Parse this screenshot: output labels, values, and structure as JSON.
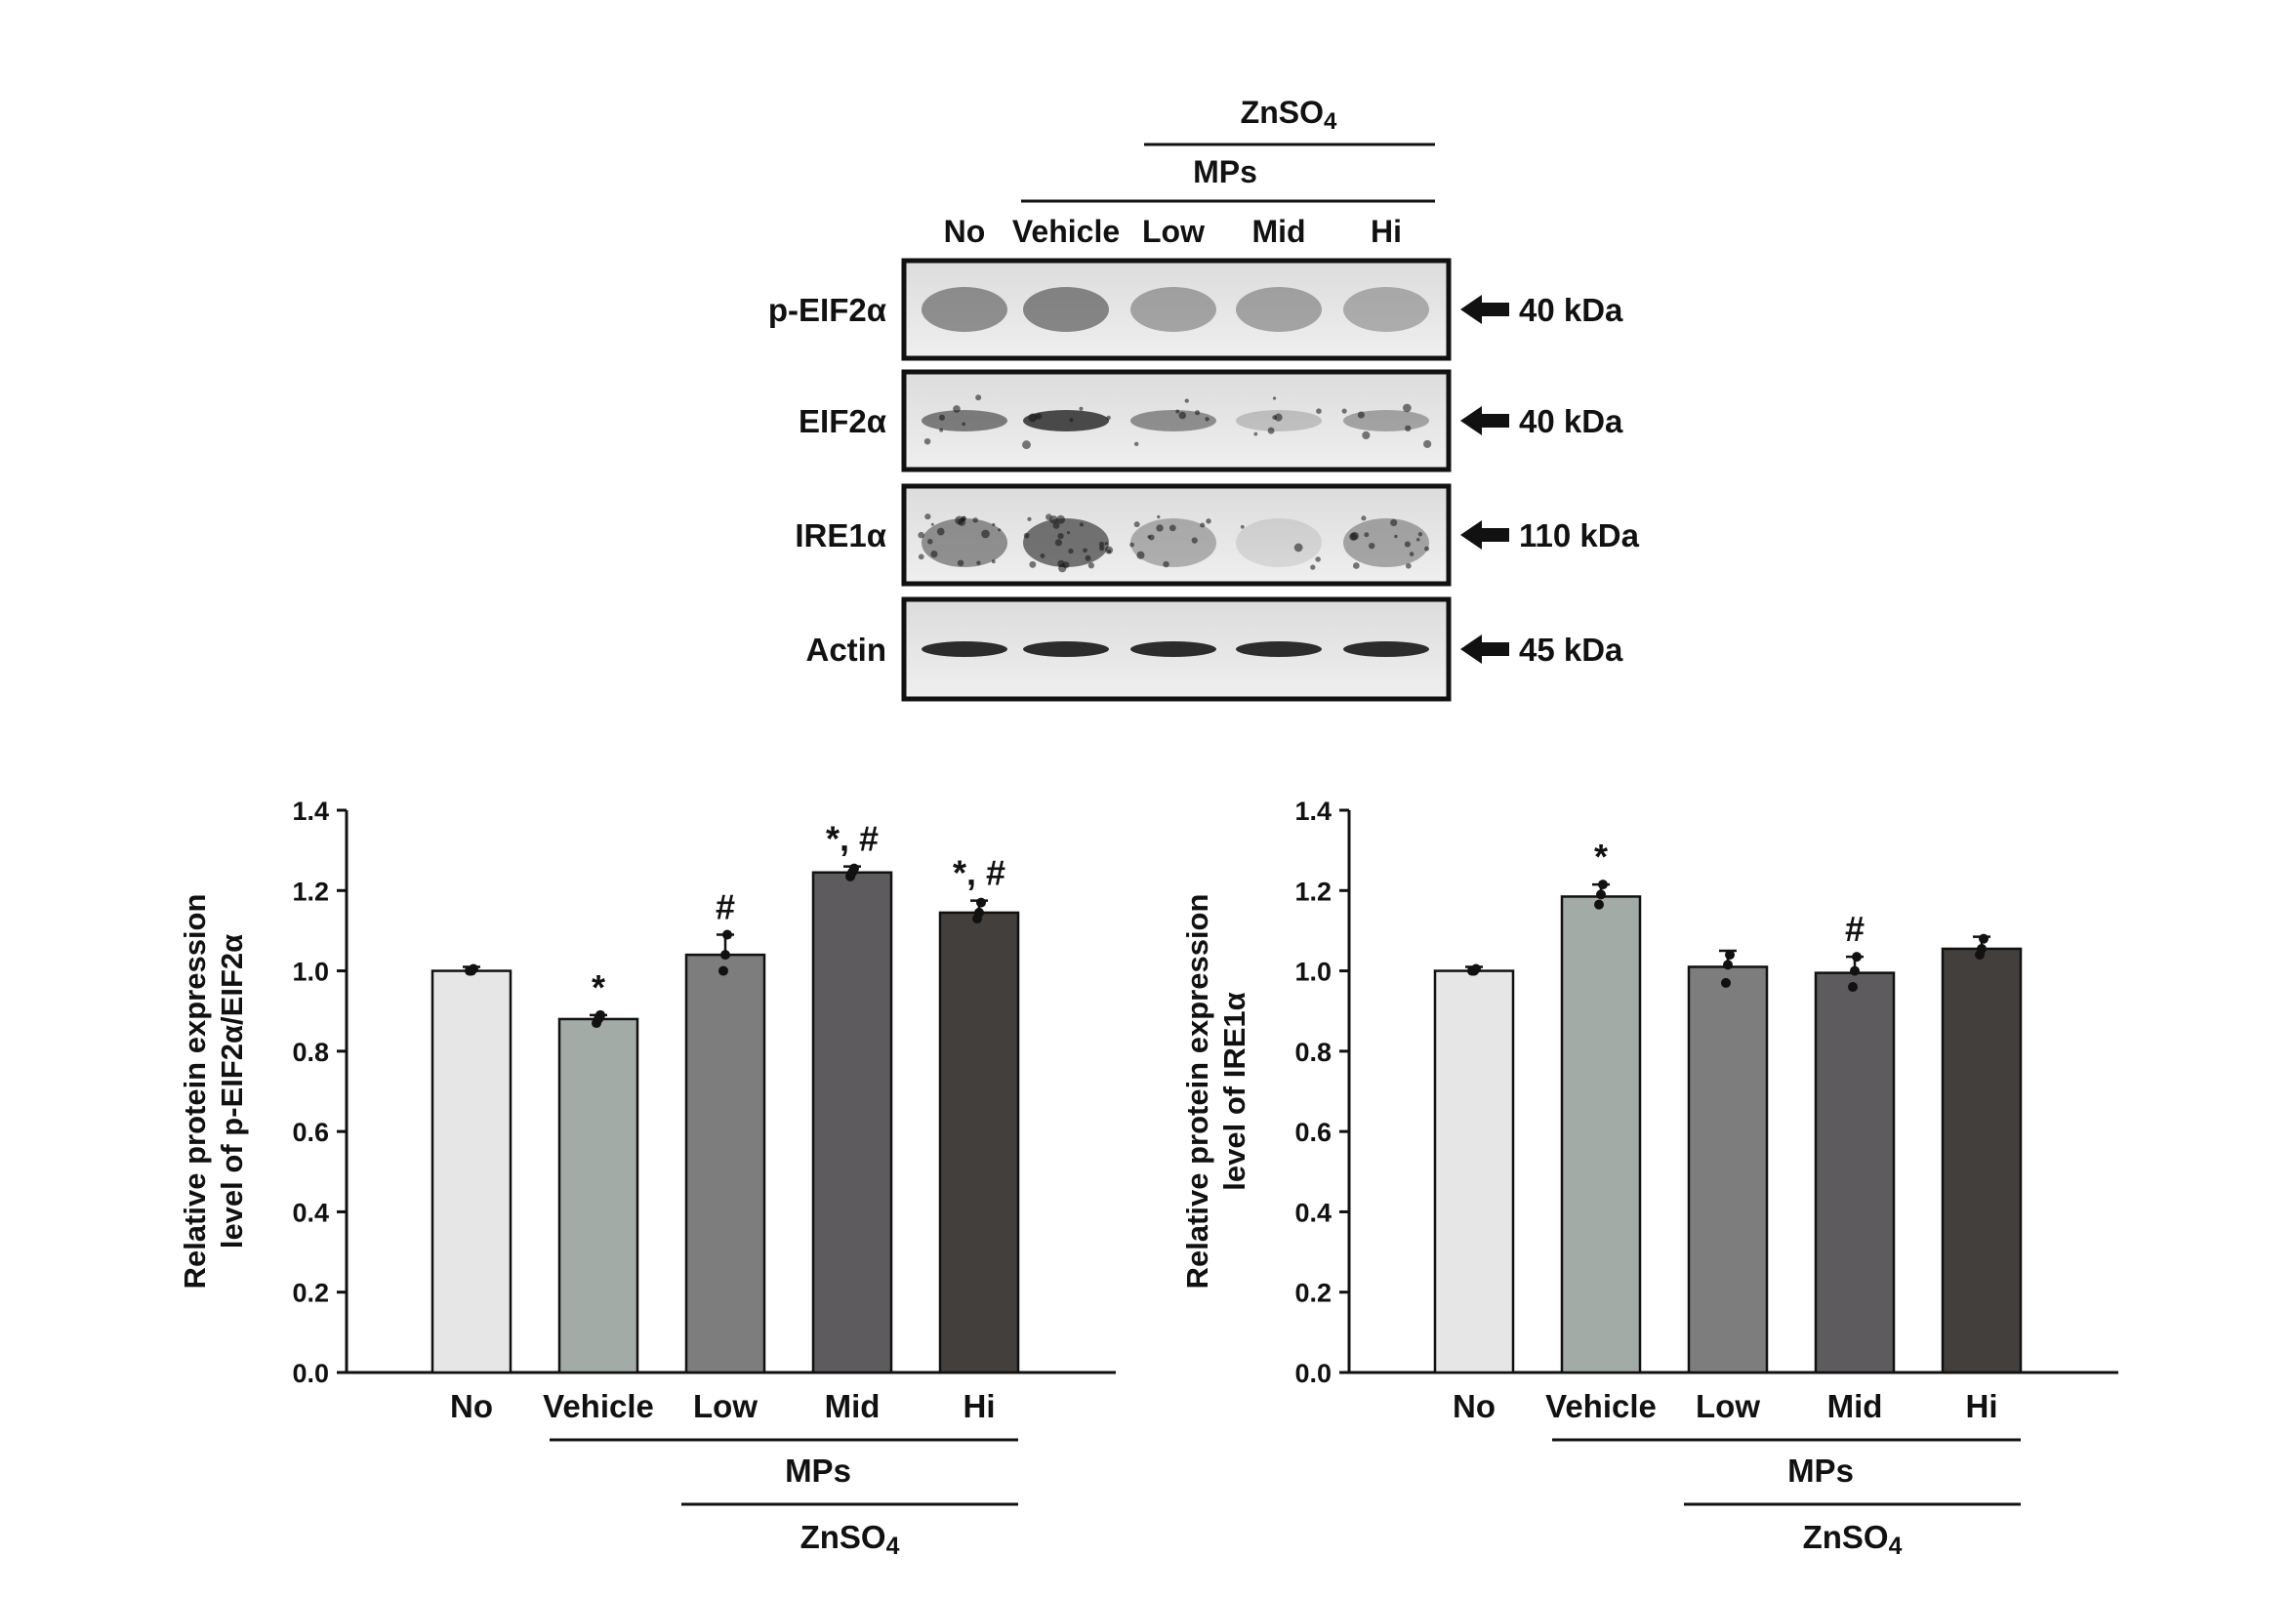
{
  "blot": {
    "header_zn": "ZnSO4",
    "header_mps": "MPs",
    "lanes": [
      "No",
      "Vehicle",
      "Low",
      "Mid",
      "Hi"
    ],
    "rows": [
      {
        "protein": "p-EIF2α",
        "kda": "40 kDa",
        "style": "diffuse"
      },
      {
        "protein": "EIF2α",
        "kda": "40 kDa",
        "style": "band"
      },
      {
        "protein": "IRE1α",
        "kda": "110 kDa",
        "style": "speckle"
      },
      {
        "protein": "Actin",
        "kda": "45 kDa",
        "style": "sharp"
      }
    ]
  },
  "chart_data": [
    {
      "type": "bar",
      "categories": [
        "No",
        "Vehicle",
        "Low",
        "Mid",
        "Hi"
      ],
      "values": [
        1.0,
        0.88,
        1.04,
        1.245,
        1.145
      ],
      "errors": [
        0.01,
        0.01,
        0.05,
        0.015,
        0.03
      ],
      "points": [
        [
          1.0,
          1.0,
          1.005
        ],
        [
          0.87,
          0.88,
          0.89
        ],
        [
          1.0,
          1.04,
          1.09
        ],
        [
          1.235,
          1.245,
          1.255
        ],
        [
          1.13,
          1.145,
          1.17
        ]
      ],
      "annotations": [
        "",
        "*",
        "#",
        "*, #",
        "*, #"
      ],
      "ylabel": [
        "Relative protein expression",
        "level of p-EIF2α/EIF2α"
      ],
      "ylim": [
        0,
        1.4
      ],
      "yticks": [
        "0.0",
        "0.2",
        "0.4",
        "0.6",
        "0.8",
        "1.0",
        "1.2",
        "1.4"
      ],
      "group_mps": "MPs",
      "group_zn": "ZnSO4",
      "bar_colors": [
        "#e6e6e6",
        "#a3aba7",
        "#7d7d7d",
        "#5d5b5d",
        "#433f3d"
      ]
    },
    {
      "type": "bar",
      "categories": [
        "No",
        "Vehicle",
        "Low",
        "Mid",
        "Hi"
      ],
      "values": [
        1.0,
        1.185,
        1.01,
        0.995,
        1.055
      ],
      "errors": [
        0.01,
        0.03,
        0.04,
        0.04,
        0.03
      ],
      "points": [
        [
          1.0,
          1.0,
          1.005
        ],
        [
          1.165,
          1.19,
          1.215
        ],
        [
          0.97,
          1.015,
          1.04
        ],
        [
          0.96,
          1.0,
          1.035
        ],
        [
          1.04,
          1.055,
          1.08
        ]
      ],
      "annotations": [
        "",
        "*",
        "",
        "#",
        ""
      ],
      "ylabel": [
        "Relative protein expression",
        "level of IRE1α"
      ],
      "ylim": [
        0,
        1.4
      ],
      "yticks": [
        "0.0",
        "0.2",
        "0.4",
        "0.6",
        "0.8",
        "1.0",
        "1.2",
        "1.4"
      ],
      "group_mps": "MPs",
      "group_zn": "ZnSO4",
      "bar_colors": [
        "#e6e6e6",
        "#a3aba7",
        "#7d7d7d",
        "#5d5b5d",
        "#433f3d"
      ]
    }
  ]
}
